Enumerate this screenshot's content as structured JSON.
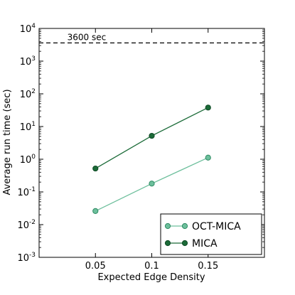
{
  "chart_data": {
    "type": "line",
    "xlabel": "Expected Edge Density",
    "ylabel": "Average run time (sec)",
    "yscale": "log",
    "xlim": [
      0.0,
      0.2
    ],
    "ylim": [
      0.001,
      10000
    ],
    "x_ticks": [
      {
        "value": 0.05,
        "label": "0.05"
      },
      {
        "value": 0.1,
        "label": "0.1"
      },
      {
        "value": 0.15,
        "label": "0.15"
      }
    ],
    "y_ticks": [
      {
        "value": 0.001,
        "base": "10",
        "exp": "-3"
      },
      {
        "value": 0.01,
        "base": "10",
        "exp": "-2"
      },
      {
        "value": 0.1,
        "base": "10",
        "exp": "-1"
      },
      {
        "value": 1,
        "base": "10",
        "exp": "0"
      },
      {
        "value": 10,
        "base": "10",
        "exp": "1"
      },
      {
        "value": 100,
        "base": "10",
        "exp": "2"
      },
      {
        "value": 1000,
        "base": "10",
        "exp": "3"
      },
      {
        "value": 10000,
        "base": "10",
        "exp": "4"
      }
    ],
    "x": [
      0.05,
      0.1,
      0.15
    ],
    "series": [
      {
        "name": "OCT-MICA",
        "values": [
          0.026,
          0.18,
          1.12
        ],
        "color": "#6dbf9c",
        "edge": "#2e8b63"
      },
      {
        "name": "MICA",
        "values": [
          0.52,
          5.2,
          38
        ],
        "color": "#1b6b38",
        "edge": "#0f4a25"
      }
    ],
    "reference_line": {
      "value": 3600,
      "label": "3600 sec",
      "style": "dashed"
    },
    "legend_position": "bottom-right",
    "grid": false
  }
}
